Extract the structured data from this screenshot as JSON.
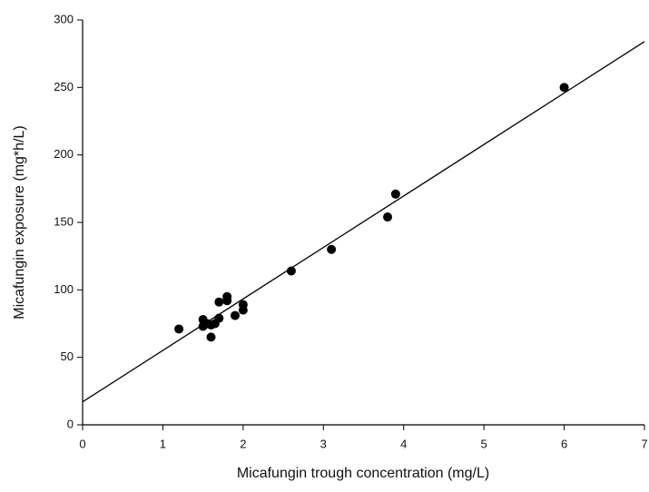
{
  "chart_data": {
    "type": "scatter",
    "xlabel": "Micafungin trough concentration (mg/L)",
    "ylabel": "Micafungin exposure (mg*h/L)",
    "x": [
      1.2,
      1.5,
      1.5,
      1.55,
      1.6,
      1.6,
      1.65,
      1.7,
      1.7,
      1.8,
      1.8,
      1.9,
      2.0,
      2.0,
      2.6,
      3.1,
      3.8,
      3.9,
      6.0
    ],
    "values": [
      71,
      78,
      73,
      75,
      65,
      74,
      75,
      79,
      91,
      92,
      95,
      81,
      85,
      89,
      114,
      130,
      154,
      171,
      250
    ],
    "color": "#000000",
    "fit": {
      "x": [
        0,
        7
      ],
      "values": [
        17,
        284
      ],
      "color": "#000000"
    },
    "xlim": [
      0,
      7
    ],
    "xticks": [
      0,
      1,
      2,
      3,
      4,
      5,
      6,
      7
    ],
    "ylim": [
      0,
      300
    ],
    "yticks": [
      0,
      50,
      100,
      150,
      200,
      250,
      300
    ],
    "grid": false
  }
}
